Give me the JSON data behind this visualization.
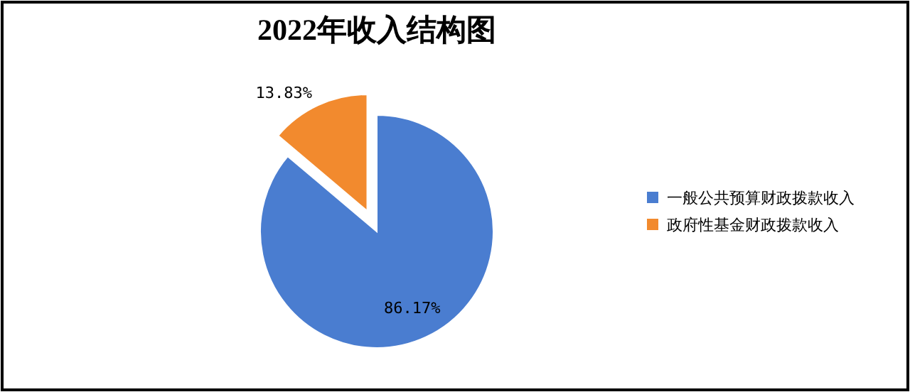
{
  "chart_data": {
    "type": "pie",
    "title": "2022年收入结构图",
    "categories": [
      "一般公共预算财政拨款收入",
      "政府性基金财政拨款收入"
    ],
    "values": [
      86.17,
      13.83
    ],
    "colors": [
      "#4a7dd0",
      "#f28a2e"
    ],
    "value_labels": [
      "86.17%",
      "13.83%"
    ],
    "legend": "right"
  }
}
